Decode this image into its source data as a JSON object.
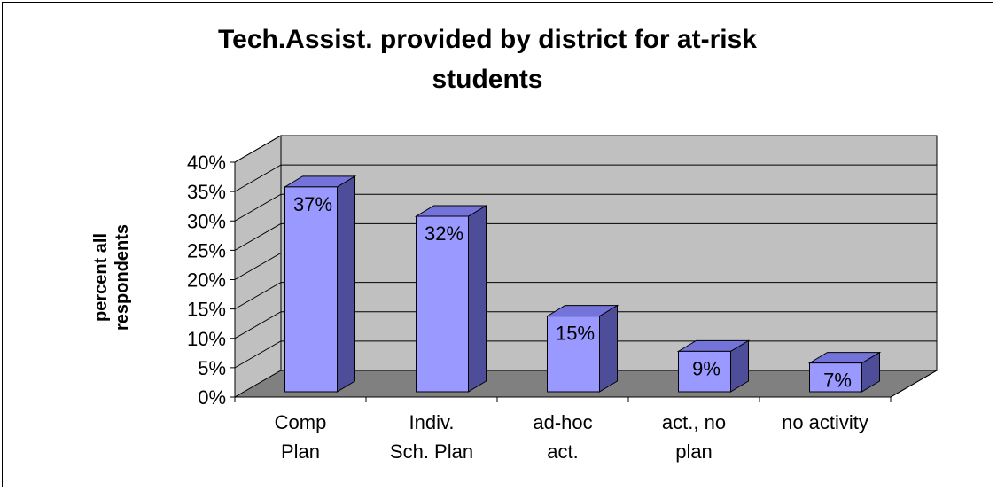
{
  "chart_data": {
    "type": "bar",
    "title_lines": [
      "Tech.Assist. provided by district for at-risk",
      "students"
    ],
    "ylabel_lines": [
      "percent all",
      "respondents"
    ],
    "categories": [
      [
        "Comp",
        "Plan"
      ],
      [
        "Indiv.",
        "Sch. Plan"
      ],
      [
        "ad-hoc",
        "act."
      ],
      [
        "act., no",
        "plan"
      ],
      [
        "no activity"
      ]
    ],
    "values": [
      37,
      32,
      15,
      9,
      7
    ],
    "data_labels": [
      "37%",
      "32%",
      "15%",
      "9%",
      "7%"
    ],
    "yticks": [
      "0%",
      "5%",
      "10%",
      "15%",
      "20%",
      "25%",
      "30%",
      "35%",
      "40%"
    ],
    "ylim": [
      0,
      40
    ],
    "grid": true,
    "colors": {
      "bar_front": "#9999ff",
      "bar_side": "#4d4d99",
      "bar_top": "#7373d9",
      "wall": "#c0c0c0",
      "floor": "#808080",
      "grid": "#000000"
    }
  }
}
